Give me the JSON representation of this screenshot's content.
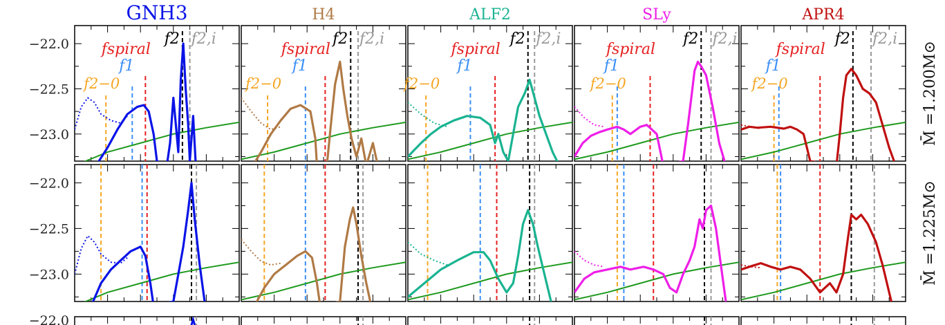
{
  "chart_data": {
    "type": "line",
    "grid": false,
    "legend": "none",
    "ylim": [
      -23.3,
      -21.8
    ],
    "yticks": [
      -22.0,
      -22.5,
      -23.0
    ],
    "ytick_labels": [
      "−22.0",
      "−22.5",
      "−23.0"
    ],
    "columns": [
      {
        "name": "GNH3",
        "color": "#0a14e6"
      },
      {
        "name": "H4",
        "color": "#b07a45"
      },
      {
        "name": "ALF2",
        "color": "#1ab391"
      },
      {
        "name": "SLy",
        "color": "#ee1ee8"
      },
      {
        "name": "APR4",
        "color": "#c01010"
      }
    ],
    "rows": [
      {
        "label": "M̄ =1.200M⊙"
      },
      {
        "label": "M̄ =1.225M⊙"
      }
    ],
    "vline_labels": {
      "f20": "f2−0",
      "f1": "f1",
      "fspiral": "fspiral",
      "f2": "f2",
      "f2i": "f2,i"
    },
    "vline_colors": {
      "f20": "#f5a623",
      "f1": "#3a8ef5",
      "fspiral": "#e62020",
      "f2": "#000000",
      "f2i": "#999999"
    },
    "noise_curve_color": "#1e9a1e",
    "third_row_visible_label": "−22.0"
  }
}
